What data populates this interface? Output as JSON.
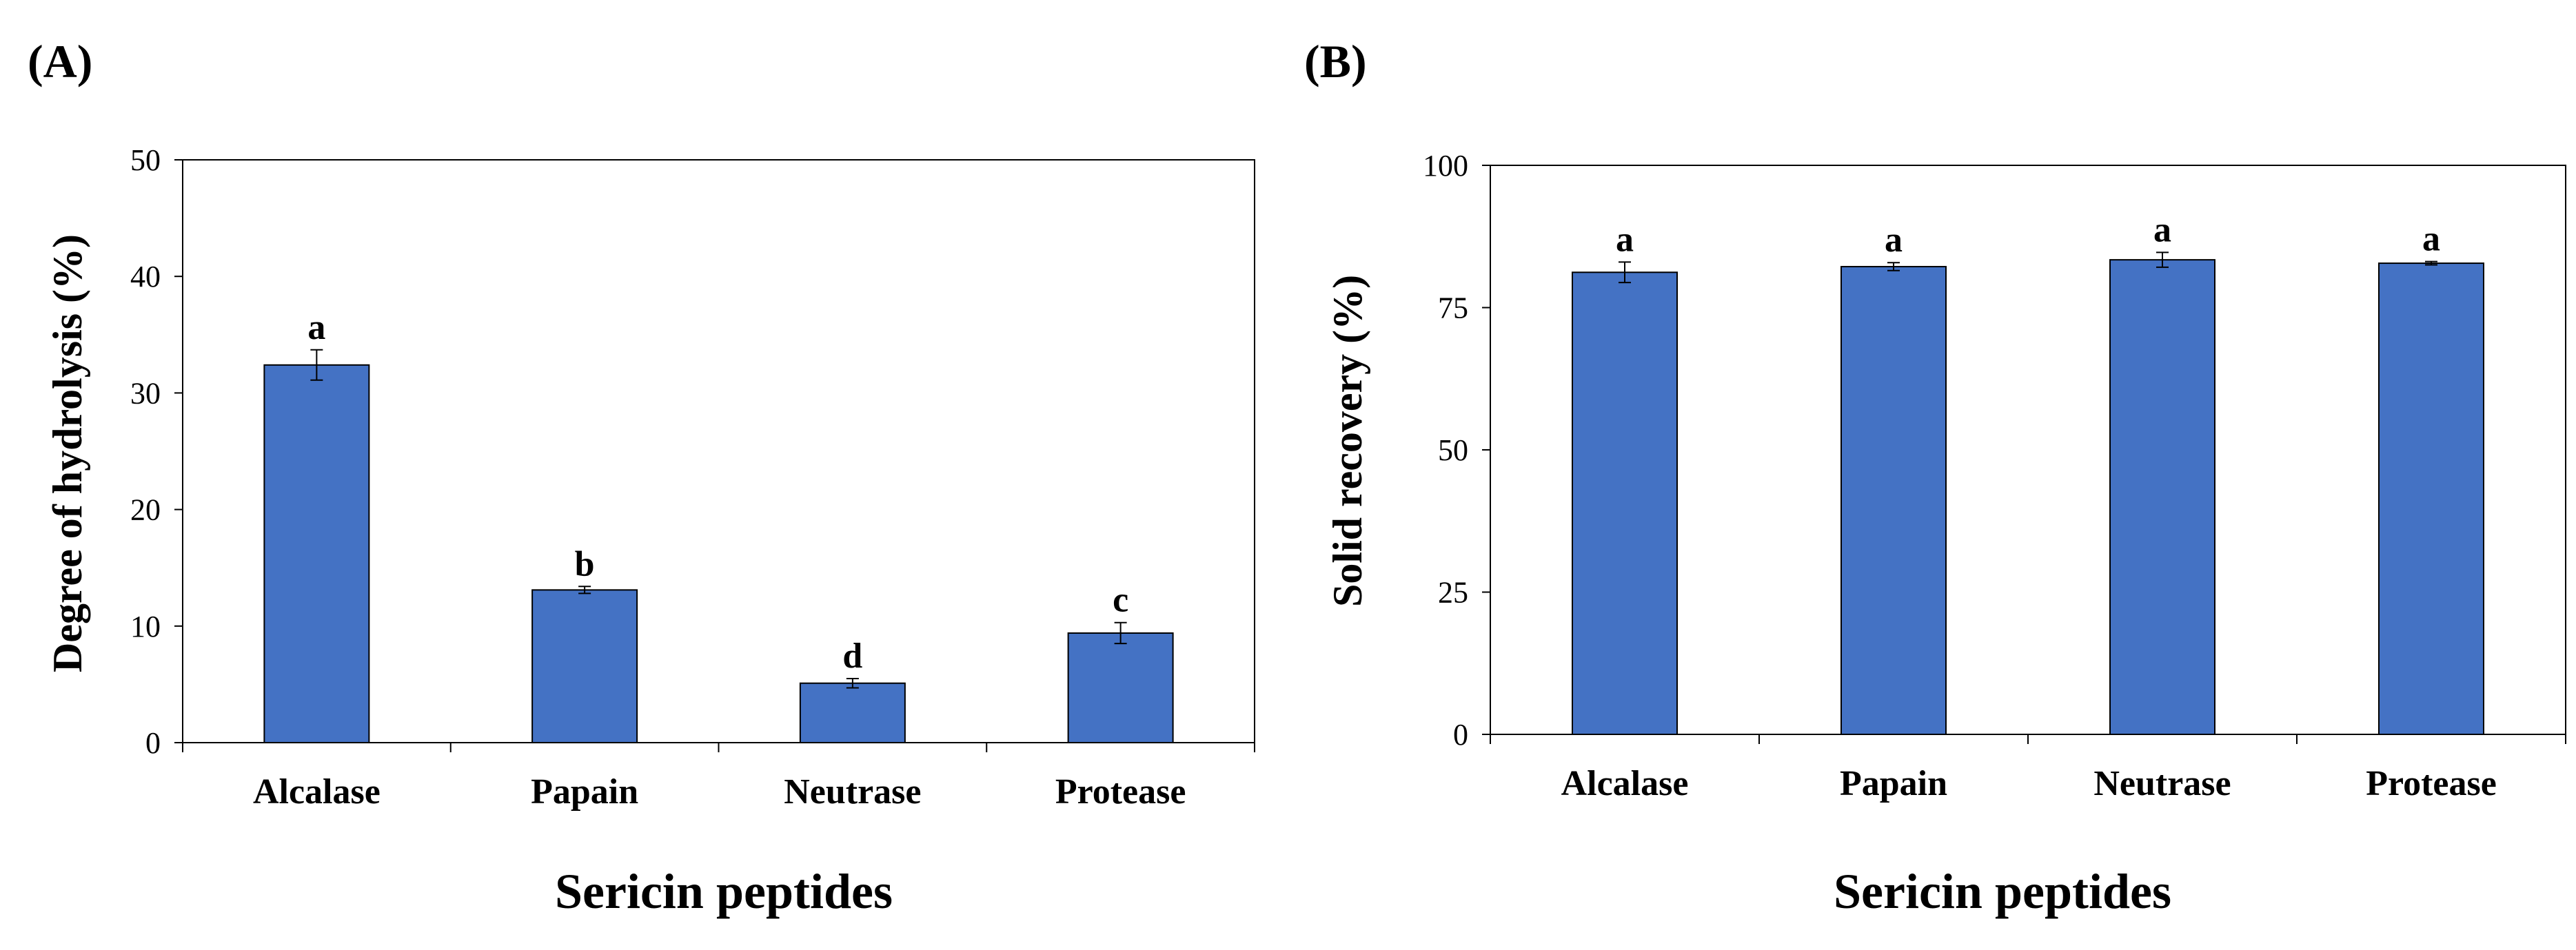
{
  "colors": {
    "bar": "#4472C4",
    "bar_edge": "#000000",
    "axis": "#000000"
  },
  "chart_data": [
    {
      "type": "bar",
      "panel_label": "(A)",
      "categories": [
        "Alcalase",
        "Papain",
        "Neutrase",
        "Protease"
      ],
      "values": [
        32.4,
        13.1,
        5.1,
        9.4
      ],
      "errors": [
        1.3,
        0.3,
        0.4,
        0.9
      ],
      "significance": [
        "a",
        "b",
        "d",
        "c"
      ],
      "ylabel": "Degree of hydrolysis (%)",
      "xlabel": "Sericin peptides",
      "ylim": [
        0,
        50
      ],
      "yticks": [
        0,
        10,
        20,
        30,
        40,
        50
      ],
      "ytick_labels": [
        "0",
        "10",
        "20",
        "30",
        "40",
        "50"
      ]
    },
    {
      "type": "bar",
      "panel_label": "(B)",
      "categories": [
        "Alcalase",
        "Papain",
        "Neutrase",
        "Protease"
      ],
      "values": [
        81.2,
        82.2,
        83.4,
        82.8
      ],
      "errors": [
        1.8,
        0.7,
        1.3,
        0.3
      ],
      "significance": [
        "a",
        "a",
        "a",
        "a"
      ],
      "ylabel": "Solid recovery (%)",
      "xlabel": "Sericin peptides",
      "ylim": [
        0,
        100
      ],
      "yticks": [
        0,
        25,
        50,
        75,
        100
      ],
      "ytick_labels": [
        "0",
        "25",
        "50",
        "75",
        "100"
      ]
    }
  ]
}
